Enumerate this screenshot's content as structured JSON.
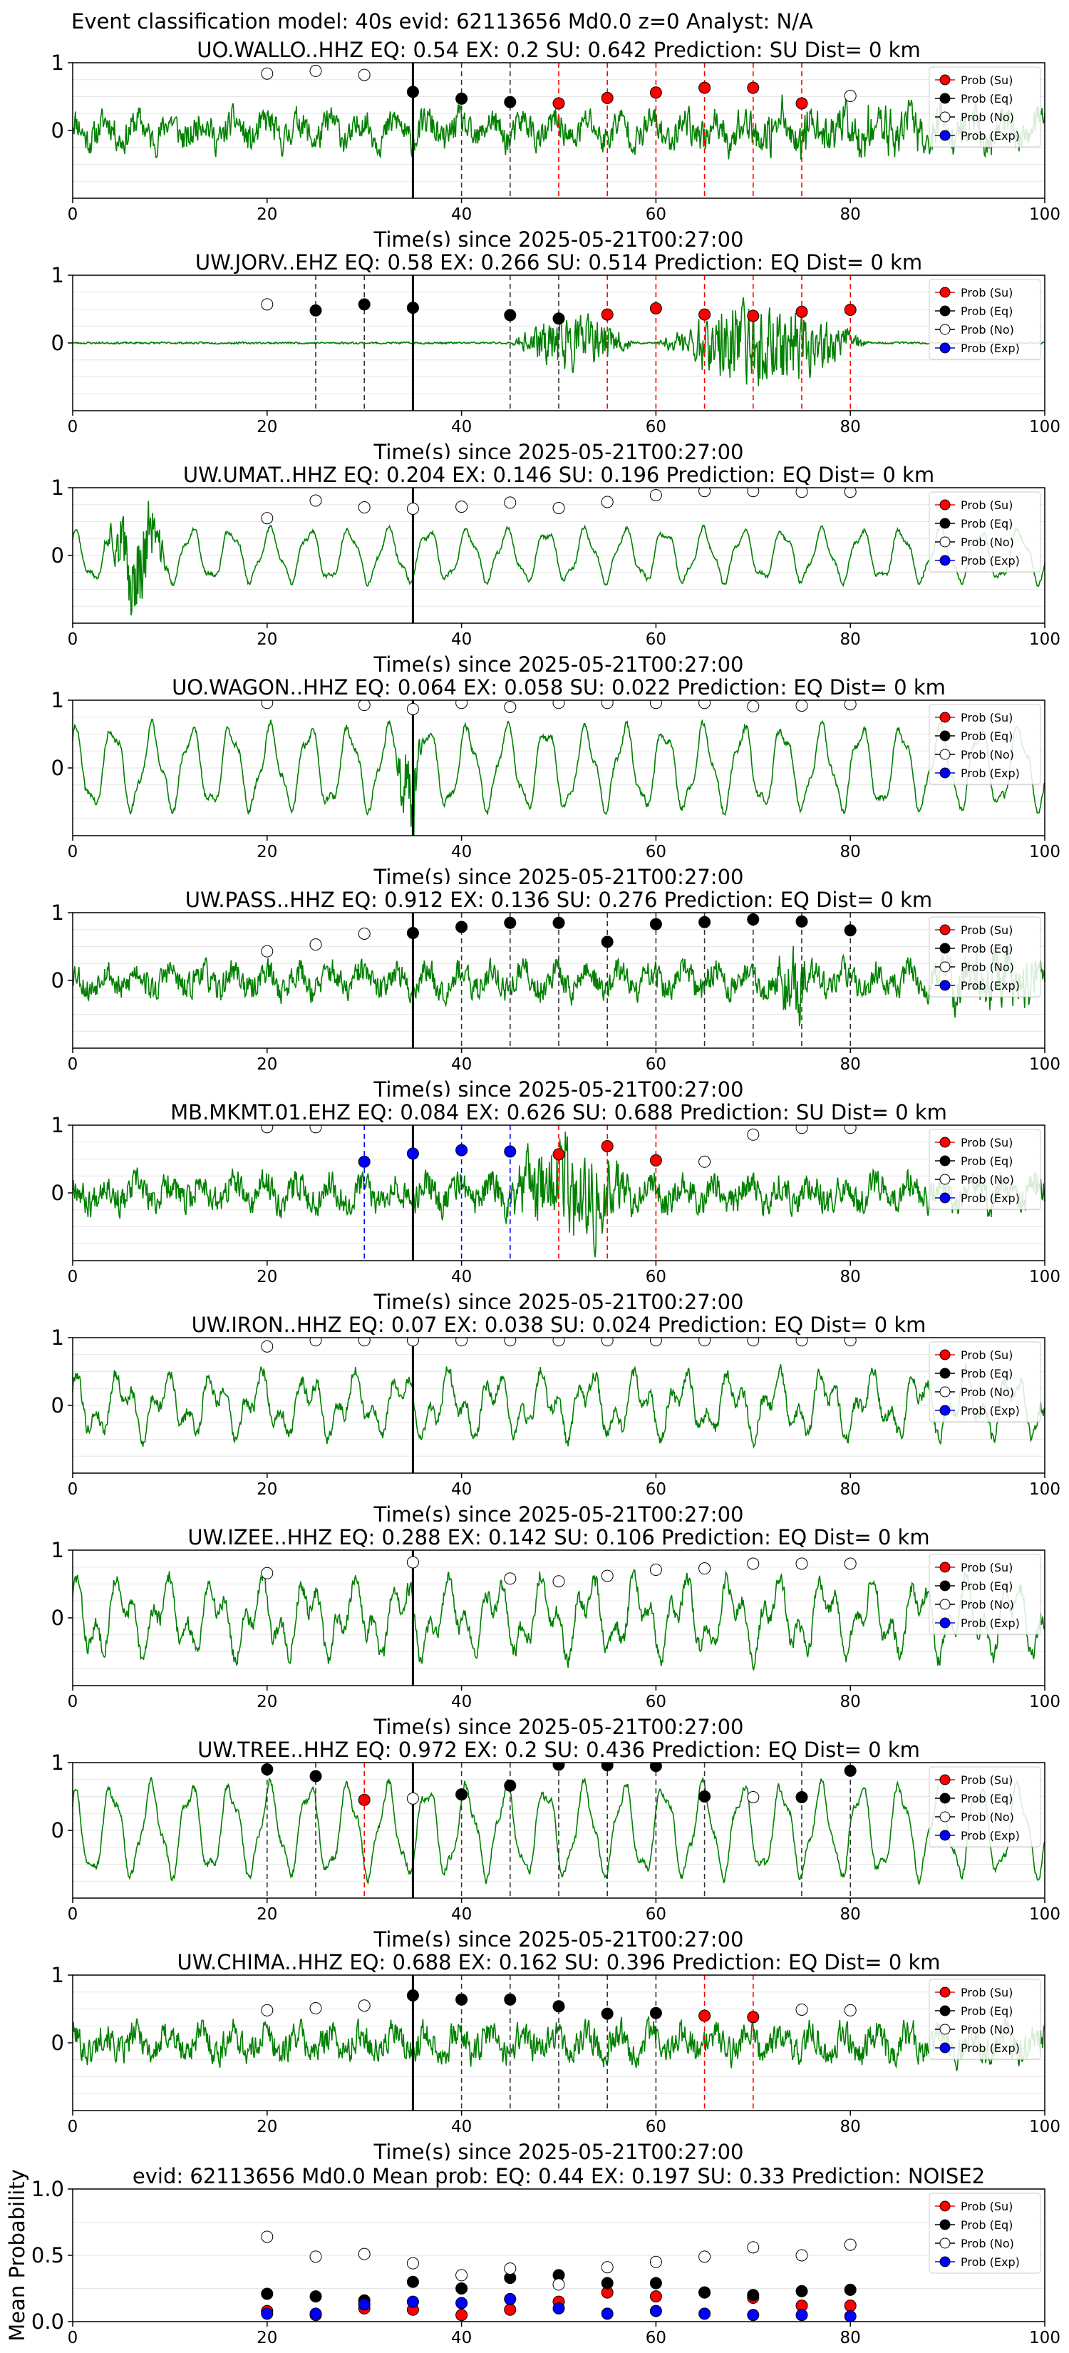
{
  "page_title": "Event classification model: 40s evid: 62113656 Md0.0 z=0 Analyst: N/A",
  "colors": {
    "waveform": "#008000",
    "su": "#ff0000",
    "eq": "#000000",
    "no": "#ffffff",
    "exp": "#0000ff",
    "arrival_line": "#000000",
    "grid": "#e6e6e6"
  },
  "legend": [
    "Prob (Su)",
    "Prob (Eq)",
    "Prob (No)",
    "Prob (Exp)"
  ],
  "chart_data": [
    {
      "type": "scatter",
      "title": "UO.WALLO..HHZ   EQ: 0.54   EX: 0.2   SU: 0.642   Prediction: SU    Dist= 0 km",
      "xlabel": "Time(s) since 2025-05-21T00:27:00",
      "xlim": [
        0,
        100
      ],
      "ylim": [
        -1,
        1
      ],
      "xticks": [
        0,
        20,
        40,
        60,
        80,
        100
      ],
      "yticks": [
        0,
        1
      ],
      "arrival": 35,
      "trace": {
        "seed": 11,
        "char": "noise",
        "amp": 0.3,
        "bursts": [
          [
            62,
            100,
            0.35
          ]
        ]
      },
      "points": [
        {
          "x": 20,
          "cls": "no",
          "p": 0.84
        },
        {
          "x": 25,
          "cls": "no",
          "p": 0.88
        },
        {
          "x": 30,
          "cls": "no",
          "p": 0.82
        },
        {
          "x": 35,
          "cls": "eq",
          "p": 0.57
        },
        {
          "x": 40,
          "cls": "eq",
          "p": 0.47
        },
        {
          "x": 45,
          "cls": "eq",
          "p": 0.42
        },
        {
          "x": 50,
          "cls": "su",
          "p": 0.4
        },
        {
          "x": 55,
          "cls": "su",
          "p": 0.48
        },
        {
          "x": 60,
          "cls": "su",
          "p": 0.56
        },
        {
          "x": 65,
          "cls": "su",
          "p": 0.63
        },
        {
          "x": 70,
          "cls": "su",
          "p": 0.63
        },
        {
          "x": 75,
          "cls": "su",
          "p": 0.4
        },
        {
          "x": 80,
          "cls": "no",
          "p": 0.51
        }
      ]
    },
    {
      "type": "scatter",
      "title": "UW.JORV..EHZ   EQ: 0.58   EX: 0.266   SU: 0.514   Prediction: EQ    Dist= 0 km",
      "xlabel": "Time(s) since 2025-05-21T00:27:00",
      "xlim": [
        0,
        100
      ],
      "ylim": [
        -1,
        1
      ],
      "xticks": [
        0,
        20,
        40,
        60,
        80,
        100
      ],
      "yticks": [
        0,
        1
      ],
      "arrival": 35,
      "trace": {
        "seed": 23,
        "char": "quiet",
        "amp": 0.02,
        "bursts": [
          [
            45,
            58,
            0.55
          ],
          [
            60,
            82,
            0.85
          ]
        ]
      },
      "points": [
        {
          "x": 20,
          "cls": "no",
          "p": 0.57
        },
        {
          "x": 25,
          "cls": "eq",
          "p": 0.48
        },
        {
          "x": 30,
          "cls": "eq",
          "p": 0.57
        },
        {
          "x": 35,
          "cls": "eq",
          "p": 0.52
        },
        {
          "x": 45,
          "cls": "eq",
          "p": 0.41
        },
        {
          "x": 50,
          "cls": "eq",
          "p": 0.36
        },
        {
          "x": 55,
          "cls": "su",
          "p": 0.42
        },
        {
          "x": 60,
          "cls": "su",
          "p": 0.51
        },
        {
          "x": 65,
          "cls": "su",
          "p": 0.42
        },
        {
          "x": 70,
          "cls": "su",
          "p": 0.4
        },
        {
          "x": 75,
          "cls": "su",
          "p": 0.46
        },
        {
          "x": 80,
          "cls": "su",
          "p": 0.49
        }
      ]
    },
    {
      "type": "scatter",
      "title": "UW.UMAT..HHZ   EQ: 0.204   EX: 0.146   SU: 0.196   Prediction: EQ    Dist= 0 km",
      "xlabel": "Time(s) since 2025-05-21T00:27:00",
      "xlim": [
        0,
        100
      ],
      "ylim": [
        -1,
        1
      ],
      "xticks": [
        0,
        20,
        40,
        60,
        80,
        100
      ],
      "yticks": [
        0,
        1
      ],
      "arrival": 35,
      "trace": {
        "seed": 37,
        "char": "wave",
        "amp": 0.35,
        "bursts": [
          [
            3,
            10,
            0.9
          ]
        ]
      },
      "points": [
        {
          "x": 20,
          "cls": "no",
          "p": 0.55
        },
        {
          "x": 25,
          "cls": "no",
          "p": 0.81
        },
        {
          "x": 30,
          "cls": "no",
          "p": 0.71
        },
        {
          "x": 35,
          "cls": "no",
          "p": 0.69
        },
        {
          "x": 40,
          "cls": "no",
          "p": 0.72
        },
        {
          "x": 45,
          "cls": "no",
          "p": 0.78
        },
        {
          "x": 50,
          "cls": "no",
          "p": 0.7
        },
        {
          "x": 55,
          "cls": "no",
          "p": 0.79
        },
        {
          "x": 60,
          "cls": "no",
          "p": 0.89
        },
        {
          "x": 65,
          "cls": "no",
          "p": 0.95
        },
        {
          "x": 70,
          "cls": "no",
          "p": 0.95
        },
        {
          "x": 75,
          "cls": "no",
          "p": 0.94
        },
        {
          "x": 80,
          "cls": "no",
          "p": 0.94
        }
      ]
    },
    {
      "type": "scatter",
      "title": "UO.WAGON..HHZ   EQ: 0.064   EX: 0.058   SU: 0.022   Prediction: EQ    Dist= 0 km",
      "xlabel": "Time(s) since 2025-05-21T00:27:00",
      "xlim": [
        0,
        100
      ],
      "ylim": [
        -1,
        1
      ],
      "xticks": [
        0,
        20,
        40,
        60,
        80,
        100
      ],
      "yticks": [
        0,
        1
      ],
      "arrival": 35,
      "trace": {
        "seed": 41,
        "char": "wave",
        "amp": 0.55,
        "bursts": [
          [
            33,
            36,
            1.0
          ]
        ]
      },
      "points": [
        {
          "x": 20,
          "cls": "no",
          "p": 0.96
        },
        {
          "x": 30,
          "cls": "no",
          "p": 0.93
        },
        {
          "x": 35,
          "cls": "no",
          "p": 0.87
        },
        {
          "x": 40,
          "cls": "no",
          "p": 0.96
        },
        {
          "x": 45,
          "cls": "no",
          "p": 0.9
        },
        {
          "x": 50,
          "cls": "no",
          "p": 0.96
        },
        {
          "x": 55,
          "cls": "no",
          "p": 0.96
        },
        {
          "x": 60,
          "cls": "no",
          "p": 0.96
        },
        {
          "x": 65,
          "cls": "no",
          "p": 0.96
        },
        {
          "x": 70,
          "cls": "no",
          "p": 0.91
        },
        {
          "x": 75,
          "cls": "no",
          "p": 0.92
        },
        {
          "x": 80,
          "cls": "no",
          "p": 0.94
        }
      ]
    },
    {
      "type": "scatter",
      "title": "UW.PASS..HHZ   EQ: 0.912   EX: 0.136   SU: 0.276   Prediction: EQ    Dist= 0 km",
      "xlabel": "Time(s) since 2025-05-21T00:27:00",
      "xlim": [
        0,
        100
      ],
      "ylim": [
        -1,
        1
      ],
      "xticks": [
        0,
        20,
        40,
        60,
        80,
        100
      ],
      "yticks": [
        0,
        1
      ],
      "arrival": 35,
      "trace": {
        "seed": 53,
        "char": "noise",
        "amp": 0.28,
        "bursts": [
          [
            72,
            76,
            0.95
          ],
          [
            88,
            100,
            0.6
          ]
        ]
      },
      "points": [
        {
          "x": 20,
          "cls": "no",
          "p": 0.43
        },
        {
          "x": 25,
          "cls": "no",
          "p": 0.53
        },
        {
          "x": 30,
          "cls": "no",
          "p": 0.69
        },
        {
          "x": 35,
          "cls": "eq",
          "p": 0.7
        },
        {
          "x": 40,
          "cls": "eq",
          "p": 0.79
        },
        {
          "x": 45,
          "cls": "eq",
          "p": 0.85
        },
        {
          "x": 50,
          "cls": "eq",
          "p": 0.85
        },
        {
          "x": 55,
          "cls": "eq",
          "p": 0.57
        },
        {
          "x": 60,
          "cls": "eq",
          "p": 0.83
        },
        {
          "x": 65,
          "cls": "eq",
          "p": 0.86
        },
        {
          "x": 70,
          "cls": "eq",
          "p": 0.9
        },
        {
          "x": 75,
          "cls": "eq",
          "p": 0.87
        },
        {
          "x": 80,
          "cls": "eq",
          "p": 0.74
        }
      ]
    },
    {
      "type": "scatter",
      "title": "MB.MKMT.01.EHZ   EQ: 0.084   EX: 0.626   SU: 0.688   Prediction: SU    Dist= 0 km",
      "xlabel": "Time(s) since 2025-05-21T00:27:00",
      "xlim": [
        0,
        100
      ],
      "ylim": [
        -1,
        1
      ],
      "xticks": [
        0,
        20,
        40,
        60,
        80,
        100
      ],
      "yticks": [
        0,
        1
      ],
      "arrival": 35,
      "trace": {
        "seed": 67,
        "char": "noise",
        "amp": 0.3,
        "bursts": [
          [
            44,
            58,
            1.0
          ]
        ]
      },
      "points": [
        {
          "x": 20,
          "cls": "no",
          "p": 0.97
        },
        {
          "x": 25,
          "cls": "no",
          "p": 0.97
        },
        {
          "x": 30,
          "cls": "exp",
          "p": 0.46
        },
        {
          "x": 35,
          "cls": "exp",
          "p": 0.58
        },
        {
          "x": 40,
          "cls": "exp",
          "p": 0.63
        },
        {
          "x": 45,
          "cls": "exp",
          "p": 0.61
        },
        {
          "x": 50,
          "cls": "su",
          "p": 0.57
        },
        {
          "x": 55,
          "cls": "su",
          "p": 0.69
        },
        {
          "x": 60,
          "cls": "su",
          "p": 0.48
        },
        {
          "x": 65,
          "cls": "no",
          "p": 0.46
        },
        {
          "x": 70,
          "cls": "no",
          "p": 0.86
        },
        {
          "x": 75,
          "cls": "no",
          "p": 0.96
        },
        {
          "x": 80,
          "cls": "no",
          "p": 0.96
        }
      ]
    },
    {
      "type": "scatter",
      "title": "UW.IRON..HHZ   EQ: 0.07   EX: 0.038   SU: 0.024   Prediction: EQ    Dist= 0 km",
      "xlabel": "Time(s) since 2025-05-21T00:27:00",
      "xlim": [
        0,
        100
      ],
      "ylim": [
        -1,
        1
      ],
      "xticks": [
        0,
        20,
        40,
        60,
        80,
        100
      ],
      "yticks": [
        0,
        1
      ],
      "arrival": 35,
      "trace": {
        "seed": 79,
        "char": "mixed",
        "amp": 0.45,
        "bursts": []
      },
      "points": [
        {
          "x": 20,
          "cls": "no",
          "p": 0.87
        },
        {
          "x": 25,
          "cls": "no",
          "p": 0.96
        },
        {
          "x": 30,
          "cls": "no",
          "p": 0.96
        },
        {
          "x": 35,
          "cls": "no",
          "p": 0.96
        },
        {
          "x": 40,
          "cls": "no",
          "p": 0.96
        },
        {
          "x": 45,
          "cls": "no",
          "p": 0.96
        },
        {
          "x": 50,
          "cls": "no",
          "p": 0.96
        },
        {
          "x": 55,
          "cls": "no",
          "p": 0.96
        },
        {
          "x": 60,
          "cls": "no",
          "p": 0.96
        },
        {
          "x": 65,
          "cls": "no",
          "p": 0.96
        },
        {
          "x": 70,
          "cls": "no",
          "p": 0.96
        },
        {
          "x": 75,
          "cls": "no",
          "p": 0.96
        },
        {
          "x": 80,
          "cls": "no",
          "p": 0.96
        }
      ]
    },
    {
      "type": "scatter",
      "title": "UW.IZEE..HHZ   EQ: 0.288   EX: 0.142   SU: 0.106   Prediction: EQ    Dist= 0 km",
      "xlabel": "Time(s) since 2025-05-21T00:27:00",
      "xlim": [
        0,
        100
      ],
      "ylim": [
        -1,
        1
      ],
      "xticks": [
        0,
        20,
        40,
        60,
        80,
        100
      ],
      "yticks": [
        0,
        1
      ],
      "arrival": 35,
      "trace": {
        "seed": 83,
        "char": "mixed",
        "amp": 0.55,
        "bursts": []
      },
      "points": [
        {
          "x": 20,
          "cls": "no",
          "p": 0.66
        },
        {
          "x": 35,
          "cls": "no",
          "p": 0.82
        },
        {
          "x": 45,
          "cls": "no",
          "p": 0.58
        },
        {
          "x": 50,
          "cls": "no",
          "p": 0.54
        },
        {
          "x": 55,
          "cls": "no",
          "p": 0.62
        },
        {
          "x": 60,
          "cls": "no",
          "p": 0.71
        },
        {
          "x": 65,
          "cls": "no",
          "p": 0.73
        },
        {
          "x": 70,
          "cls": "no",
          "p": 0.8
        },
        {
          "x": 75,
          "cls": "no",
          "p": 0.8
        },
        {
          "x": 80,
          "cls": "no",
          "p": 0.8
        }
      ]
    },
    {
      "type": "scatter",
      "title": "UW.TREE..HHZ   EQ: 0.972   EX: 0.2   SU: 0.436   Prediction: EQ    Dist= 0 km",
      "xlabel": "Time(s) since 2025-05-21T00:27:00",
      "xlim": [
        0,
        100
      ],
      "ylim": [
        -1,
        1
      ],
      "xticks": [
        0,
        20,
        40,
        60,
        80,
        100
      ],
      "yticks": [
        0,
        1
      ],
      "arrival": 35,
      "trace": {
        "seed": 97,
        "char": "wave",
        "amp": 0.6,
        "bursts": []
      },
      "points": [
        {
          "x": 20,
          "cls": "eq",
          "p": 0.9
        },
        {
          "x": 25,
          "cls": "eq",
          "p": 0.8
        },
        {
          "x": 30,
          "cls": "su",
          "p": 0.45
        },
        {
          "x": 35,
          "cls": "no",
          "p": 0.47
        },
        {
          "x": 40,
          "cls": "eq",
          "p": 0.53
        },
        {
          "x": 45,
          "cls": "eq",
          "p": 0.66
        },
        {
          "x": 50,
          "cls": "eq",
          "p": 0.97
        },
        {
          "x": 55,
          "cls": "eq",
          "p": 0.96
        },
        {
          "x": 60,
          "cls": "eq",
          "p": 0.95
        },
        {
          "x": 65,
          "cls": "eq",
          "p": 0.5
        },
        {
          "x": 70,
          "cls": "no",
          "p": 0.49
        },
        {
          "x": 75,
          "cls": "eq",
          "p": 0.49
        },
        {
          "x": 80,
          "cls": "eq",
          "p": 0.88
        }
      ]
    },
    {
      "type": "scatter",
      "title": "UW.CHIMA..HHZ   EQ: 0.688   EX: 0.162   SU: 0.396   Prediction: EQ    Dist= 0 km",
      "xlabel": "Time(s) since 2025-05-21T00:27:00",
      "xlim": [
        0,
        100
      ],
      "ylim": [
        -1,
        1
      ],
      "xticks": [
        0,
        20,
        40,
        60,
        80,
        100
      ],
      "yticks": [
        0,
        1
      ],
      "arrival": 35,
      "trace": {
        "seed": 101,
        "char": "noise",
        "amp": 0.3,
        "bursts": []
      },
      "points": [
        {
          "x": 20,
          "cls": "no",
          "p": 0.48
        },
        {
          "x": 25,
          "cls": "no",
          "p": 0.51
        },
        {
          "x": 30,
          "cls": "no",
          "p": 0.55
        },
        {
          "x": 35,
          "cls": "eq",
          "p": 0.7
        },
        {
          "x": 40,
          "cls": "eq",
          "p": 0.64
        },
        {
          "x": 45,
          "cls": "eq",
          "p": 0.64
        },
        {
          "x": 50,
          "cls": "eq",
          "p": 0.54
        },
        {
          "x": 55,
          "cls": "eq",
          "p": 0.43
        },
        {
          "x": 60,
          "cls": "eq",
          "p": 0.44
        },
        {
          "x": 65,
          "cls": "su",
          "p": 0.4
        },
        {
          "x": 70,
          "cls": "su",
          "p": 0.38
        },
        {
          "x": 75,
          "cls": "no",
          "p": 0.49
        },
        {
          "x": 80,
          "cls": "no",
          "p": 0.48
        }
      ]
    },
    {
      "type": "scatter",
      "title": "evid: 62113656   Md0.0    Mean prob:   EQ: 0.44   EX: 0.197   SU: 0.33   Prediction: NOISE2",
      "ylabel": "Mean Probability",
      "xlim": [
        0,
        100
      ],
      "ylim": [
        0,
        1
      ],
      "xticks": [
        0,
        20,
        40,
        60,
        80,
        100
      ],
      "yticks": [
        0.0,
        0.5,
        1.0
      ],
      "x": [
        20,
        25,
        30,
        35,
        40,
        45,
        50,
        55,
        60,
        65,
        70,
        75,
        80
      ],
      "series": [
        {
          "name": "Prob (Su)",
          "key": "su",
          "values": [
            0.08,
            0.05,
            0.1,
            0.09,
            0.05,
            0.09,
            0.15,
            0.22,
            0.19,
            0.22,
            0.18,
            0.12,
            0.12
          ]
        },
        {
          "name": "Prob (Eq)",
          "key": "eq",
          "values": [
            0.21,
            0.19,
            0.16,
            0.3,
            0.25,
            0.33,
            0.35,
            0.29,
            0.29,
            0.22,
            0.2,
            0.23,
            0.24
          ]
        },
        {
          "name": "Prob (No)",
          "key": "no",
          "values": [
            0.64,
            0.49,
            0.51,
            0.44,
            0.35,
            0.4,
            0.28,
            0.41,
            0.45,
            0.49,
            0.56,
            0.5,
            0.58
          ]
        },
        {
          "name": "Prob (Exp)",
          "key": "exp",
          "values": [
            0.06,
            0.06,
            0.13,
            0.15,
            0.14,
            0.17,
            0.1,
            0.06,
            0.08,
            0.06,
            0.05,
            0.05,
            0.04
          ]
        }
      ]
    }
  ]
}
